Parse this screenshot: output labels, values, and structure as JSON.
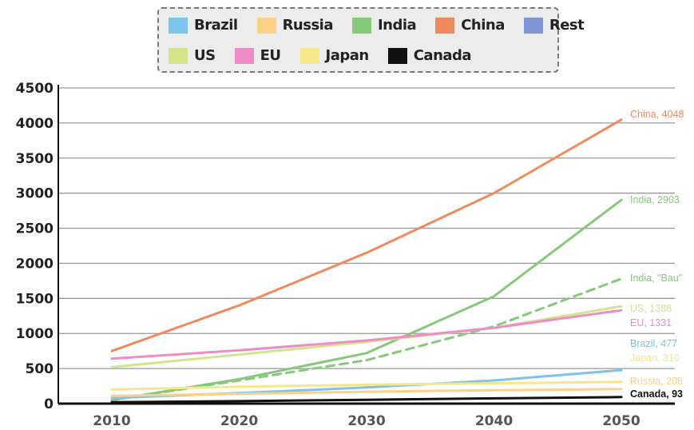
{
  "chart_data": {
    "type": "line",
    "x": [
      2010,
      2020,
      2030,
      2040,
      2050
    ],
    "ylim": [
      0,
      4500
    ],
    "yticks": [
      0,
      500,
      1000,
      1500,
      2000,
      2500,
      3000,
      3500,
      4000,
      4500
    ],
    "legend_placement": "top",
    "grid": "horizontal",
    "legend": [
      {
        "name": "Brazil",
        "color": "#7ec3ea"
      },
      {
        "name": "Russia",
        "color": "#fcd089"
      },
      {
        "name": "India",
        "color": "#86c97a"
      },
      {
        "name": "China",
        "color": "#f08a5d"
      },
      {
        "name": "Rest",
        "color": "#7f93d6"
      },
      {
        "name": "US",
        "color": "#d4e48a"
      },
      {
        "name": "EU",
        "color": "#ee8cc6"
      },
      {
        "name": "Japan",
        "color": "#f6e88a"
      },
      {
        "name": "Canada",
        "color": "#111111"
      }
    ],
    "series": [
      {
        "name": "China",
        "color": "#f08a5d",
        "values": [
          750,
          1400,
          2150,
          3000,
          4048
        ],
        "label": "China, 4048",
        "dashed": false
      },
      {
        "name": "India",
        "color": "#86c97a",
        "values": [
          50,
          350,
          720,
          1530,
          2903
        ],
        "label": "India, 2903",
        "dashed": false
      },
      {
        "name": "India \"Bau\"",
        "color": "#86c97a",
        "values": [
          50,
          330,
          620,
          1100,
          1780
        ],
        "label": "India, \"Bau\"",
        "dashed": true
      },
      {
        "name": "US",
        "color": "#d4e48a",
        "values": [
          520,
          700,
          880,
          1080,
          1388
        ],
        "label": "US, 1388",
        "dashed": false
      },
      {
        "name": "EU",
        "color": "#ee8cc6",
        "values": [
          640,
          760,
          900,
          1080,
          1331
        ],
        "label": "EU, 1331",
        "dashed": false
      },
      {
        "name": "Brazil",
        "color": "#7ec3ea",
        "values": [
          80,
          150,
          230,
          330,
          477
        ],
        "label": "Brazil, 477",
        "dashed": false
      },
      {
        "name": "Japan",
        "color": "#f6e88a",
        "values": [
          200,
          240,
          270,
          290,
          310
        ],
        "label": "Japan, 310",
        "dashed": false
      },
      {
        "name": "Russia",
        "color": "#fcd089",
        "values": [
          110,
          140,
          170,
          190,
          208
        ],
        "label": "Russia, 208",
        "dashed": false
      },
      {
        "name": "Canada",
        "color": "#111111",
        "values": [
          20,
          35,
          55,
          75,
          93
        ],
        "label": "Canada, 93",
        "dashed": false
      }
    ]
  }
}
